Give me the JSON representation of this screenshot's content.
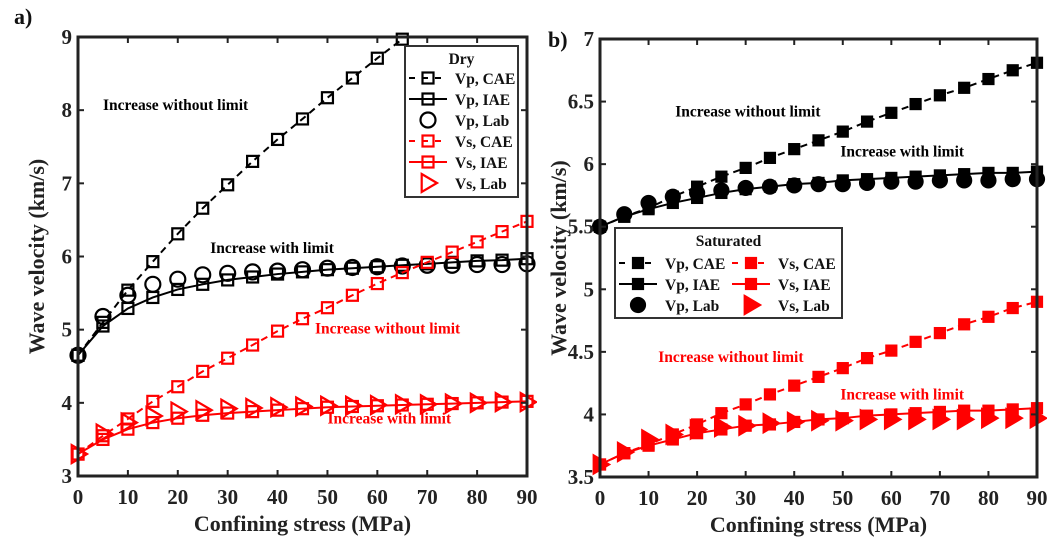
{
  "chart_data": [
    {
      "type": "line",
      "panel_label": "a)",
      "title": "",
      "xlabel": "Confining stress (MPa)",
      "ylabel": "Wave velocity (km/s)",
      "xlim": [
        0,
        90
      ],
      "ylim": [
        3,
        9
      ],
      "xticks": [
        0,
        10,
        20,
        30,
        40,
        50,
        60,
        70,
        80,
        90
      ],
      "yticks": [
        3,
        4,
        5,
        6,
        7,
        8,
        9
      ],
      "grid": false,
      "legend_title": "Dry",
      "legend_placement": "top-right",
      "series": [
        {
          "name": "Vp, CAE",
          "color": "#000000",
          "line": "dashed",
          "marker": "square-open",
          "x": [
            0,
            5,
            10,
            15,
            20,
            25,
            30,
            35,
            40,
            45,
            50,
            55,
            60,
            65
          ],
          "y": [
            4.65,
            5.1,
            5.54,
            5.93,
            6.31,
            6.66,
            6.98,
            7.3,
            7.6,
            7.88,
            8.17,
            8.44,
            8.71,
            8.97
          ]
        },
        {
          "name": "Vp, IAE",
          "color": "#000000",
          "line": "solid",
          "marker": "square-open",
          "x": [
            0,
            5,
            10,
            15,
            20,
            25,
            30,
            35,
            40,
            45,
            50,
            55,
            60,
            65,
            70,
            75,
            80,
            85,
            90
          ],
          "y": [
            4.65,
            5.05,
            5.29,
            5.44,
            5.55,
            5.62,
            5.68,
            5.72,
            5.76,
            5.79,
            5.82,
            5.84,
            5.86,
            5.88,
            5.9,
            5.92,
            5.94,
            5.95,
            5.97
          ]
        },
        {
          "name": "Vp, Lab",
          "color": "#000000",
          "line": "none",
          "marker": "circle-open",
          "x": [
            0,
            5,
            10,
            15,
            20,
            25,
            30,
            35,
            40,
            45,
            50,
            55,
            60,
            65,
            70,
            75,
            80,
            85,
            90
          ],
          "y": [
            4.65,
            5.18,
            5.47,
            5.62,
            5.69,
            5.75,
            5.77,
            5.79,
            5.8,
            5.82,
            5.84,
            5.85,
            5.86,
            5.87,
            5.88,
            5.88,
            5.89,
            5.89,
            5.9
          ]
        },
        {
          "name": "Vs, CAE",
          "color": "#ff0000",
          "line": "dashed",
          "marker": "square-open",
          "x": [
            0,
            5,
            10,
            15,
            20,
            25,
            30,
            35,
            40,
            45,
            50,
            55,
            60,
            65,
            70,
            75,
            80,
            85,
            90
          ],
          "y": [
            3.3,
            3.55,
            3.78,
            4.02,
            4.22,
            4.43,
            4.61,
            4.79,
            4.98,
            5.15,
            5.3,
            5.47,
            5.63,
            5.78,
            5.92,
            6.06,
            6.2,
            6.34,
            6.48
          ]
        },
        {
          "name": "Vs, IAE",
          "color": "#ff0000",
          "line": "solid",
          "marker": "square-open",
          "x": [
            0,
            5,
            10,
            15,
            20,
            25,
            30,
            35,
            40,
            45,
            50,
            55,
            60,
            65,
            70,
            75,
            80,
            85,
            90
          ],
          "y": [
            3.3,
            3.5,
            3.64,
            3.73,
            3.79,
            3.83,
            3.86,
            3.88,
            3.9,
            3.92,
            3.94,
            3.95,
            3.96,
            3.97,
            3.98,
            3.99,
            4.0,
            4.01,
            4.02
          ]
        },
        {
          "name": "Vs,  Lab",
          "color": "#ff0000",
          "line": "none",
          "marker": "triangle-right-open",
          "x": [
            0,
            5,
            10,
            15,
            20,
            25,
            30,
            35,
            40,
            45,
            50,
            55,
            60,
            65,
            70,
            75,
            80,
            85,
            90
          ],
          "y": [
            3.3,
            3.58,
            3.73,
            3.82,
            3.88,
            3.9,
            3.92,
            3.93,
            3.94,
            3.95,
            3.96,
            3.96,
            3.97,
            3.98,
            3.98,
            3.99,
            4.0,
            4.01,
            4.01
          ]
        }
      ],
      "annotations": [
        {
          "text": "Increase without limit",
          "color": "#000000",
          "x": 5,
          "y": 8.0
        },
        {
          "text": "Increase with limit",
          "color": "#000000",
          "x": 26.5,
          "y": 6.05
        },
        {
          "text": "Increase without limit",
          "color": "#ff0000",
          "x": 47.5,
          "y": 4.95
        },
        {
          "text": "Increase with limit",
          "color": "#ff0000",
          "x": 50,
          "y": 3.72
        }
      ]
    },
    {
      "type": "line",
      "panel_label": "b)",
      "title": "",
      "xlabel": "Confining stress (MPa)",
      "ylabel": "Wave velocity (km/s)",
      "xlim": [
        0,
        90
      ],
      "ylim": [
        3.5,
        7
      ],
      "xticks": [
        0,
        10,
        20,
        30,
        40,
        50,
        60,
        70,
        80,
        90
      ],
      "yticks": [
        3.5,
        4,
        4.5,
        5,
        5.5,
        6,
        6.5,
        7
      ],
      "ytick_labels": [
        "3.5",
        "4",
        "4.5",
        "5",
        "5.5",
        "6",
        "6.5",
        "7"
      ],
      "grid": false,
      "legend_title": "Saturated",
      "legend_placement": "center-left",
      "series": [
        {
          "name": "Vp, CAE",
          "color": "#000000",
          "line": "dashed",
          "marker": "square-filled",
          "x": [
            0,
            5,
            10,
            15,
            20,
            25,
            30,
            35,
            40,
            45,
            50,
            55,
            60,
            65,
            70,
            75,
            80,
            85,
            90
          ],
          "y": [
            5.5,
            5.58,
            5.65,
            5.74,
            5.82,
            5.9,
            5.97,
            6.05,
            6.12,
            6.19,
            6.26,
            6.34,
            6.41,
            6.48,
            6.55,
            6.61,
            6.68,
            6.75,
            6.81
          ]
        },
        {
          "name": "Vp, IAE",
          "color": "#000000",
          "line": "solid",
          "marker": "square-filled",
          "x": [
            0,
            5,
            10,
            15,
            20,
            25,
            30,
            35,
            40,
            45,
            50,
            55,
            60,
            65,
            70,
            75,
            80,
            85,
            90
          ],
          "y": [
            5.5,
            5.58,
            5.64,
            5.69,
            5.73,
            5.77,
            5.8,
            5.82,
            5.84,
            5.85,
            5.87,
            5.88,
            5.89,
            5.9,
            5.91,
            5.92,
            5.93,
            5.93,
            5.94
          ]
        },
        {
          "name": "Vp, Lab",
          "color": "#000000",
          "line": "none",
          "marker": "circle-filled",
          "x": [
            0,
            5,
            10,
            15,
            20,
            25,
            30,
            35,
            40,
            45,
            50,
            55,
            60,
            65,
            70,
            75,
            80,
            85,
            90
          ],
          "y": [
            5.5,
            5.6,
            5.69,
            5.74,
            5.77,
            5.79,
            5.81,
            5.82,
            5.83,
            5.84,
            5.84,
            5.85,
            5.86,
            5.86,
            5.87,
            5.87,
            5.87,
            5.88,
            5.88
          ]
        },
        {
          "name": "Vs, CAE",
          "color": "#ff0000",
          "line": "dashed",
          "marker": "square-filled",
          "x": [
            0,
            5,
            10,
            15,
            20,
            25,
            30,
            35,
            40,
            45,
            50,
            55,
            60,
            65,
            70,
            75,
            80,
            85,
            90
          ],
          "y": [
            3.6,
            3.69,
            3.76,
            3.84,
            3.92,
            4.01,
            4.08,
            4.16,
            4.23,
            4.3,
            4.37,
            4.45,
            4.51,
            4.58,
            4.65,
            4.72,
            4.78,
            4.85,
            4.9
          ]
        },
        {
          "name": "Vs, IAE",
          "color": "#ff0000",
          "line": "solid",
          "marker": "square-filled",
          "x": [
            0,
            5,
            10,
            15,
            20,
            25,
            30,
            35,
            40,
            45,
            50,
            55,
            60,
            65,
            70,
            75,
            80,
            85,
            90
          ],
          "y": [
            3.6,
            3.69,
            3.75,
            3.8,
            3.85,
            3.88,
            3.91,
            3.92,
            3.94,
            3.96,
            3.97,
            3.99,
            4.0,
            4.01,
            4.02,
            4.03,
            4.03,
            4.04,
            4.05
          ]
        },
        {
          "name": "Vs,  Lab",
          "color": "#ff0000",
          "line": "none",
          "marker": "triangle-right-filled",
          "x": [
            0,
            5,
            10,
            15,
            20,
            25,
            30,
            35,
            40,
            45,
            50,
            55,
            60,
            65,
            70,
            75,
            80,
            85,
            90
          ],
          "y": [
            3.6,
            3.7,
            3.8,
            3.84,
            3.88,
            3.9,
            3.91,
            3.93,
            3.94,
            3.95,
            3.95,
            3.96,
            3.96,
            3.96,
            3.96,
            3.96,
            3.97,
            3.97,
            3.97
          ]
        }
      ],
      "annotations": [
        {
          "text": "Increase without limit",
          "color": "#000000",
          "x": 15.5,
          "y": 6.38
        },
        {
          "text": "Increase with limit",
          "color": "#000000",
          "x": 49.5,
          "y": 6.06
        },
        {
          "text": "Increase without limit",
          "color": "#ff0000",
          "x": 12,
          "y": 4.42
        },
        {
          "text": "Increase with limit",
          "color": "#ff0000",
          "x": 49.5,
          "y": 4.12
        }
      ]
    }
  ]
}
